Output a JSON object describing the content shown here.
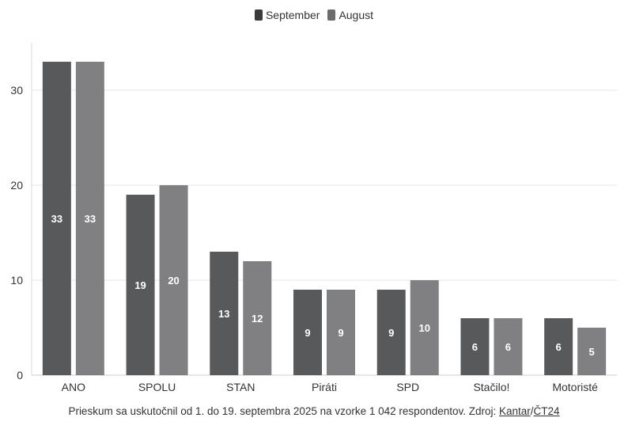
{
  "chart_data": {
    "type": "bar",
    "categories": [
      "ANO",
      "SPOLU",
      "STAN",
      "Piráti",
      "SPD",
      "Stačilo!",
      "Motoristé"
    ],
    "series": [
      {
        "name": "September",
        "values": [
          33,
          19,
          13,
          9,
          9,
          6,
          6
        ],
        "color": "#58595b"
      },
      {
        "name": "August",
        "values": [
          33,
          20,
          12,
          9,
          10,
          6,
          5
        ],
        "color": "#808082"
      }
    ],
    "yticks": [
      0,
      10,
      20,
      30
    ],
    "ylim": [
      0,
      35
    ],
    "grid": true,
    "legend_position": "top-center",
    "title": "",
    "xlabel": "",
    "ylabel": ""
  },
  "footer": {
    "text": "Prieskum sa uskutočnil od 1. do 19. septembra 2025 na vzorke 1 042 respondentov. Zdroj: ",
    "source_1": "Kantar",
    "separator": "/",
    "source_2": "ČT24"
  }
}
